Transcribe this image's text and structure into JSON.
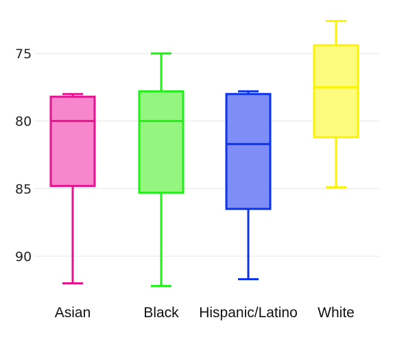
{
  "chart_data": {
    "type": "box",
    "title": "",
    "xlabel": "",
    "ylabel": "",
    "y_reversed": true,
    "ylim": [
      70.8,
      94.8
    ],
    "yticks": [
      75,
      80,
      85,
      90
    ],
    "grid": true,
    "legend": "none",
    "categories": [
      "Asian",
      "Black",
      "Hispanic/Latino",
      "White"
    ],
    "boxes": [
      {
        "category": "Asian",
        "min": 78,
        "q1": 78.2,
        "median": 80,
        "q3": 84.8,
        "max": 92,
        "stroke": "#e6128e",
        "fill": "#f786cc"
      },
      {
        "category": "Black",
        "min": 75,
        "q1": 77.8,
        "median": 80,
        "q3": 85.3,
        "max": 92.2,
        "stroke": "#22ee1a",
        "fill": "#94f57f"
      },
      {
        "category": "Hispanic/Latino",
        "min": 77.8,
        "q1": 78,
        "median": 81.7,
        "q3": 86.5,
        "max": 91.7,
        "stroke": "#0a32e8",
        "fill": "#7f8ef6"
      },
      {
        "category": "White",
        "min": 72.6,
        "q1": 74.4,
        "median": 77.5,
        "q3": 81.2,
        "max": 84.9,
        "stroke": "#fbf200",
        "fill": "#fdfb7d"
      }
    ]
  }
}
